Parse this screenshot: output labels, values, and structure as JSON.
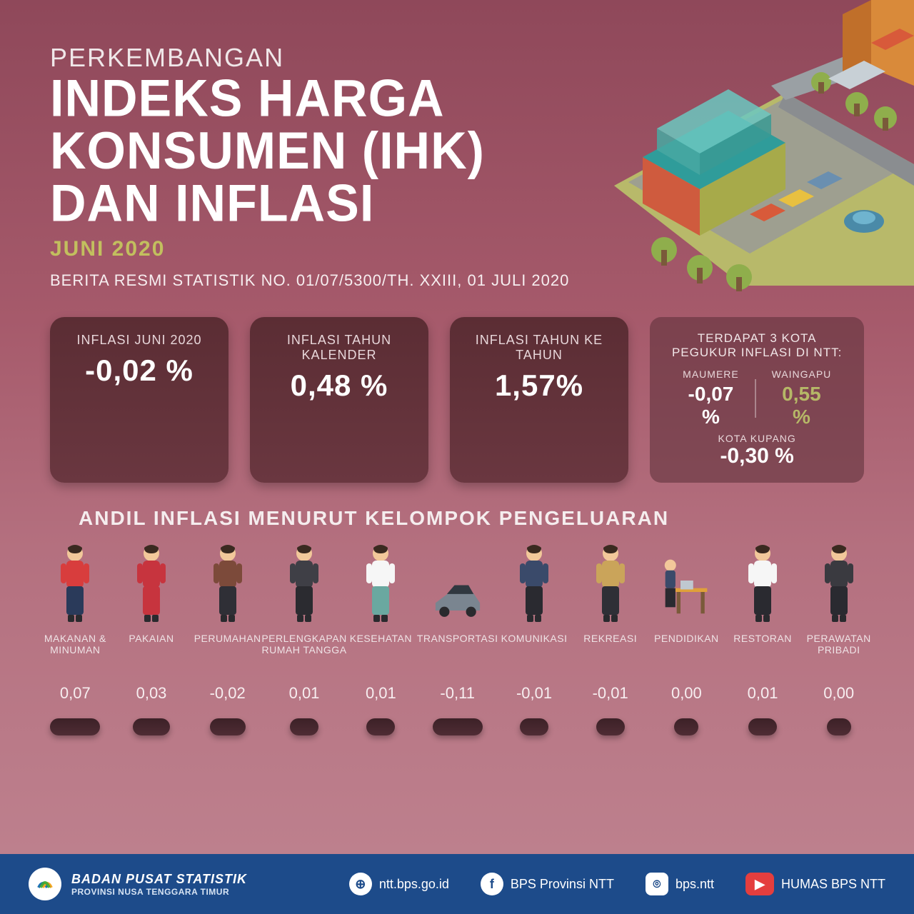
{
  "header": {
    "subtitle": "PERKEMBANGAN",
    "title_line1": "INDEKS HARGA",
    "title_line2": "KONSUMEN (IHK)",
    "title_line3": "DAN INFLASI",
    "month": "JUNI 2020",
    "ref": "BERITA RESMI STATISTIK NO. 01/07/5300/TH. XXIII, 01 JULI 2020"
  },
  "stats": [
    {
      "label_prefix": "INFLASI",
      "label_rest": " JUNI 2020",
      "value": "-0,02 %"
    },
    {
      "label_prefix": "INFLASI",
      "label_rest": " TAHUN KALENDER",
      "value": "0,48 %"
    },
    {
      "label_prefix": "INFLASI",
      "label_rest": " TAHUN KE TAHUN",
      "value": "1,57%"
    }
  ],
  "cities": {
    "title": "TERDAPAT 3 KOTA PEGUKUR INFLASI DI NTT:",
    "top": [
      {
        "name": "MAUMERE",
        "value": "-0,07 %",
        "olive": false
      },
      {
        "name": "WAINGAPU",
        "value": "0,55 %",
        "olive": true
      }
    ],
    "bottom": {
      "name": "KOTA KUPANG",
      "value": "-0,30 %"
    }
  },
  "section_title": "ANDIL INFLASI MENURUT KELOMPOK PENGELUARAN",
  "categories": [
    {
      "label": "MAKANAN & MINUMAN",
      "value": "0,07",
      "pill_w": 70,
      "icon_colors": {
        "body": "#d83d3d",
        "pants": "#2a3a5a",
        "skin": "#f2c89a",
        "hair": "#3a2a20"
      }
    },
    {
      "label": "PAKAIAN",
      "value": "0,03",
      "pill_w": 52,
      "icon_colors": {
        "body": "#c7343e",
        "pants": "#c7343e",
        "skin": "#f2c89a",
        "hair": "#3a2a20"
      }
    },
    {
      "label": "PERUMAHAN",
      "value": "-0,02",
      "pill_w": 50,
      "icon_colors": {
        "body": "#7c4a3a",
        "pants": "#2f2f36",
        "skin": "#f2c89a",
        "hair": "#3a2a20"
      }
    },
    {
      "label": "PERLENGKAPAN RUMAH TANGGA",
      "value": "0,01",
      "pill_w": 40,
      "icon_colors": {
        "body": "#3f3f46",
        "pants": "#2b2b30",
        "skin": "#f2c89a",
        "hair": "#3a2a20"
      }
    },
    {
      "label": "KESEHATAN",
      "value": "0,01",
      "pill_w": 40,
      "icon_colors": {
        "body": "#f6f6f6",
        "pants": "#6aa8a0",
        "skin": "#f2c89a",
        "hair": "#3a2a20"
      }
    },
    {
      "label": "TRANSPORTASI",
      "value": "-0,11",
      "pill_w": 70,
      "icon_colors": {
        "body": "#7a8590",
        "pants": "#505a64",
        "skin": "#303840",
        "hair": "#303840"
      }
    },
    {
      "label": "KOMUNIKASI",
      "value": "-0,01",
      "pill_w": 40,
      "icon_colors": {
        "body": "#3a4a6a",
        "pants": "#2a2a30",
        "skin": "#f2c89a",
        "hair": "#3a2a20"
      }
    },
    {
      "label": "REKREASI",
      "value": "-0,01",
      "pill_w": 40,
      "icon_colors": {
        "body": "#caa45a",
        "pants": "#2f2f36",
        "skin": "#f2c89a",
        "hair": "#3a2a20"
      }
    },
    {
      "label": "PENDIDIKAN",
      "value": "0,00",
      "pill_w": 34,
      "icon_colors": {
        "body": "#e0a03a",
        "pants": "#3a4a6a",
        "skin": "#f2c89a",
        "hair": "#3a2a20"
      }
    },
    {
      "label": "RESTORAN",
      "value": "0,01",
      "pill_w": 40,
      "icon_colors": {
        "body": "#f6f6f6",
        "pants": "#2a2a30",
        "skin": "#f2c89a",
        "hair": "#3a2a20"
      }
    },
    {
      "label": "PERAWATAN PRIBADI",
      "value": "0,00",
      "pill_w": 34,
      "icon_colors": {
        "body": "#3a3a40",
        "pants": "#2a2a30",
        "skin": "#f2c89a",
        "hair": "#3a2a20"
      }
    }
  ],
  "footer": {
    "org_name": "BADAN PUSAT STATISTIK",
    "org_sub": "PROVINSI NUSA TENGGARA TIMUR",
    "links": [
      {
        "icon": "web-icon",
        "glyph": "⊕",
        "text": "ntt.bps.go.id"
      },
      {
        "icon": "facebook-icon",
        "glyph": "f",
        "text": "BPS Provinsi NTT"
      },
      {
        "icon": "instagram-icon",
        "glyph": "⌾",
        "text": "bps.ntt"
      },
      {
        "icon": "youtube-icon",
        "glyph": "▶",
        "text": "HUMAS BPS NTT"
      }
    ]
  },
  "colors": {
    "bg_top": "#8f485a",
    "bg_bottom": "#bf8390",
    "card_bg": "#5b2d34",
    "accent_olive": "#b6b867",
    "footer_bg": "#1d4b8a"
  }
}
